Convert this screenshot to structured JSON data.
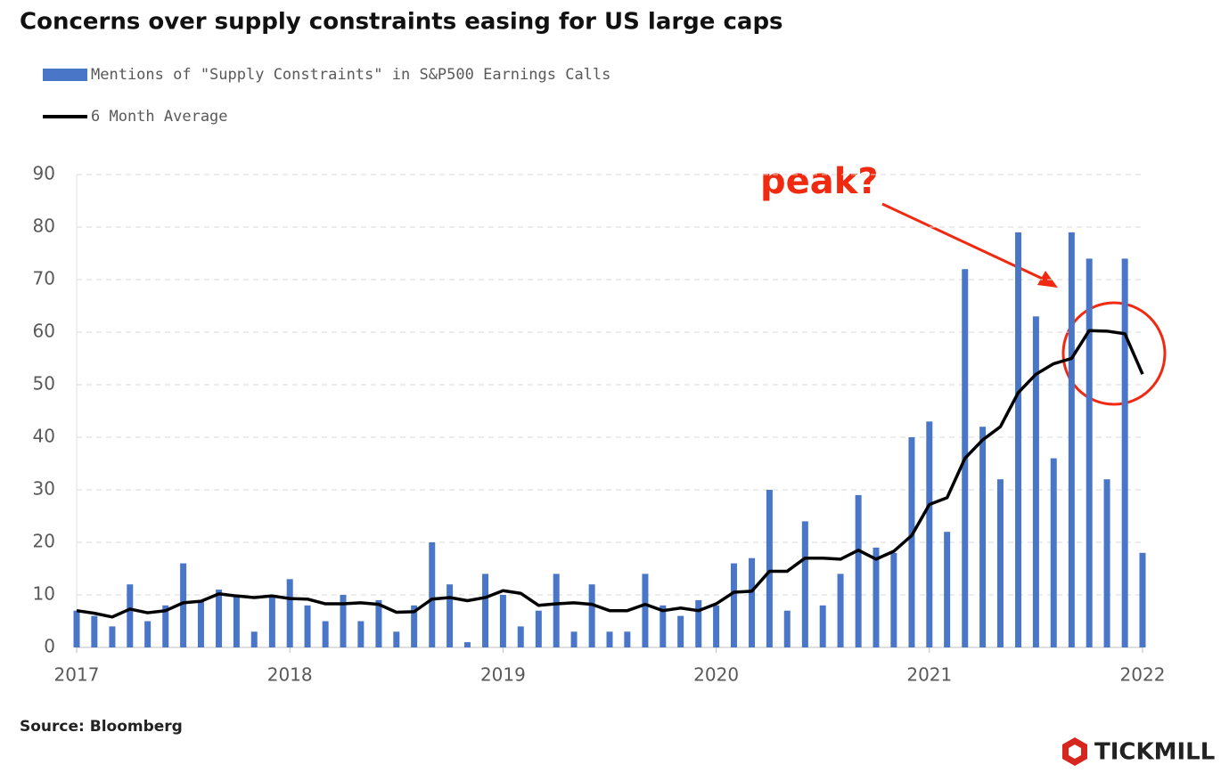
{
  "chart_data": {
    "type": "bar",
    "title": "Concerns over supply constraints easing for US large caps",
    "source": "Source:  Bloomberg",
    "annotation": "peak?",
    "brand": "TICKMILL",
    "x": [
      2017,
      2017.083,
      2017.167,
      2017.25,
      2017.333,
      2017.417,
      2017.5,
      2017.583,
      2017.667,
      2017.75,
      2017.833,
      2017.917,
      2018,
      2018.083,
      2018.167,
      2018.25,
      2018.333,
      2018.417,
      2018.5,
      2018.583,
      2018.667,
      2018.75,
      2018.833,
      2018.917,
      2019,
      2019.083,
      2019.167,
      2019.25,
      2019.333,
      2019.417,
      2019.5,
      2019.583,
      2019.667,
      2019.75,
      2019.833,
      2019.917,
      2020,
      2020.083,
      2020.167,
      2020.25,
      2020.333,
      2020.417,
      2020.5,
      2020.583,
      2020.667,
      2020.75,
      2020.833,
      2020.917,
      2021,
      2021.083,
      2021.167,
      2021.25,
      2021.333,
      2021.417,
      2021.5,
      2021.583,
      2021.667,
      2021.75,
      2021.833,
      2021.917,
      2022
    ],
    "series": [
      {
        "name": "Mentions of \"Supply Constraints\" in S&P500 Earnings Calls",
        "type": "bar",
        "color": "#4a76c8",
        "values": [
          7,
          6,
          4,
          12,
          5,
          8,
          16,
          9,
          11,
          10,
          3,
          10,
          13,
          8,
          5,
          10,
          5,
          9,
          3,
          8,
          20,
          12,
          1,
          14,
          10,
          4,
          7,
          14,
          3,
          12,
          3,
          3,
          14,
          8,
          6,
          9,
          8,
          16,
          17,
          30,
          7,
          24,
          8,
          14,
          29,
          19,
          18,
          40,
          43,
          22,
          72,
          42,
          32,
          79,
          63,
          36,
          79,
          74,
          32,
          74,
          18
        ]
      },
      {
        "name": "6 Month Average",
        "type": "line",
        "color": "#000000",
        "values": [
          7,
          6.5,
          5.8,
          7.3,
          6.6,
          7,
          8.5,
          8.8,
          10.2,
          9.8,
          9.5,
          9.8,
          9.3,
          9.2,
          8.3,
          8.3,
          8.5,
          8.2,
          6.7,
          6.8,
          9.2,
          9.5,
          8.9,
          9.5,
          10.8,
          10.3,
          8,
          8.3,
          8.5,
          8.2,
          7,
          7,
          8.2,
          7,
          7.5,
          7,
          8.3,
          10.5,
          10.7,
          14.5,
          14.5,
          17,
          17,
          16.8,
          18.5,
          16.8,
          18.3,
          21.3,
          27.2,
          28.5,
          36,
          39.5,
          42,
          48.5,
          52,
          54,
          55,
          60.3,
          60.2,
          59.7,
          52
        ]
      }
    ],
    "xlim": [
      2017,
      2022
    ],
    "xticks": [
      2017,
      2018,
      2019,
      2020,
      2021,
      2022
    ],
    "ylim": [
      0,
      90
    ],
    "yticks": [
      0,
      10,
      20,
      30,
      40,
      50,
      60,
      70,
      80,
      90
    ],
    "grid": true
  }
}
